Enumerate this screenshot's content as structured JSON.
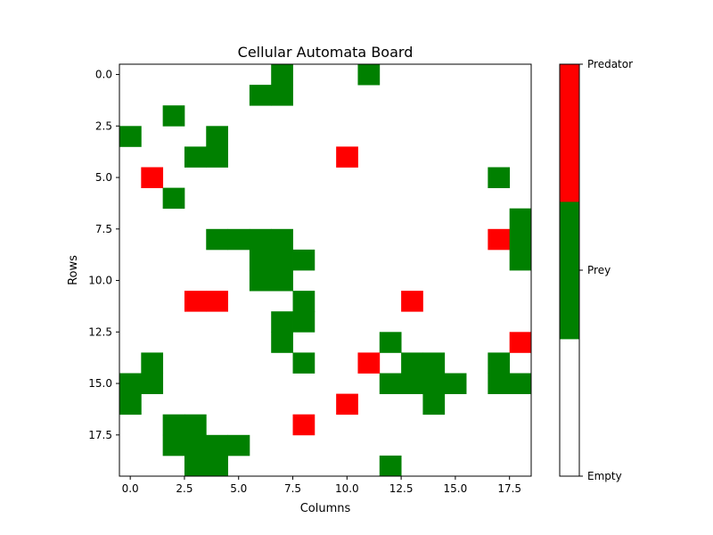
{
  "chart_data": {
    "type": "heatmap",
    "title": "Cellular Automata Board",
    "xlabel": "Columns",
    "ylabel": "Rows",
    "rows": 20,
    "cols": 19,
    "x_ticks": [
      "0.0",
      "2.5",
      "5.0",
      "7.5",
      "10.0",
      "12.5",
      "15.0",
      "17.5"
    ],
    "y_ticks": [
      "0.0",
      "2.5",
      "5.0",
      "7.5",
      "10.0",
      "12.5",
      "15.0",
      "17.5"
    ],
    "states": [
      "Empty",
      "Prey",
      "Predator"
    ],
    "colors": {
      "Empty": "#ffffff",
      "Prey": "#008000",
      "Predator": "#ff0000"
    },
    "legend": "colorbar-right",
    "grid": [
      "0000000100010000000",
      "0000001100000000000",
      "0010000000000000000",
      "1000100000000000000",
      "0001100000200000000",
      "0200000000000000010",
      "0010000000000000000",
      "0000000000000000001",
      "0000111100000000021",
      "0000001110000000001",
      "0000001100000000000",
      "0002200010000200000",
      "0000000110000000000",
      "0000000100001000002",
      "0100000010020110010",
      "1100000000001111011",
      "1000000000200010000",
      "0011000020000000000",
      "0011110000000000000",
      "0001100000001000000"
    ]
  }
}
